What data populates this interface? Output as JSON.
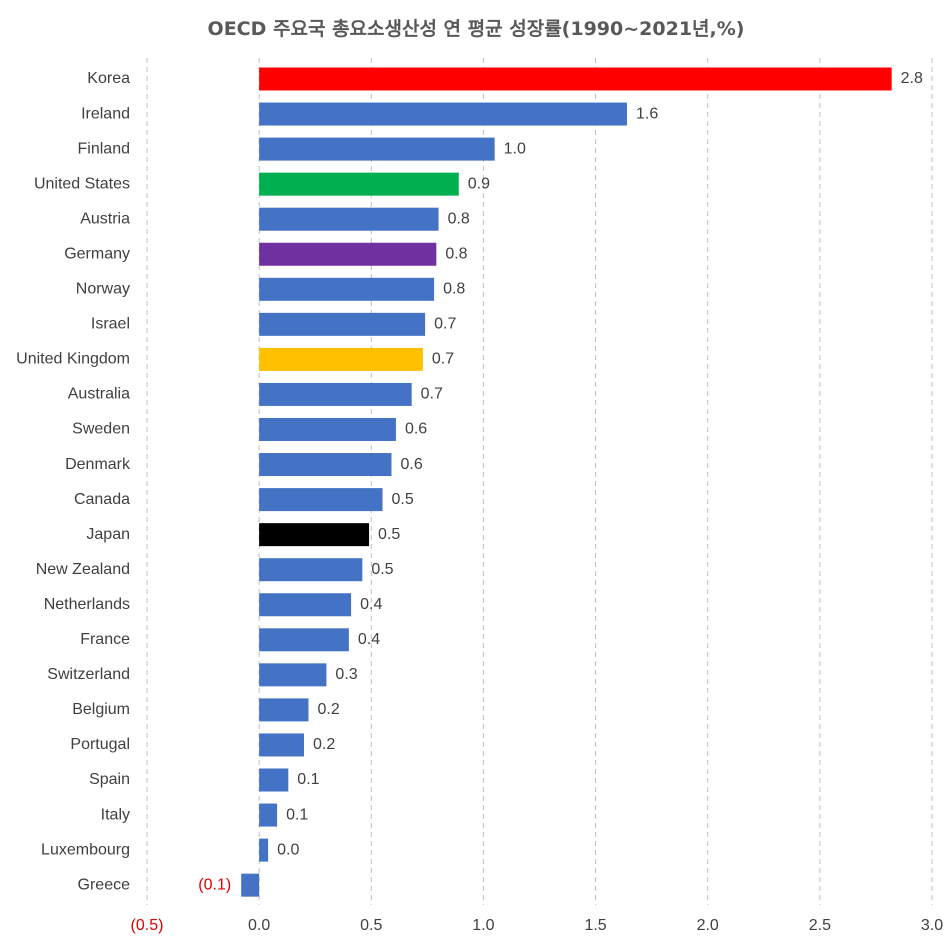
{
  "chart_data": {
    "type": "bar",
    "orientation": "horizontal",
    "title": "OECD 주요국 총요소생산성 연 평균 성장률(1990~2021년,%)",
    "xlim": [
      -0.5,
      3.0
    ],
    "grid": "vertical dashed",
    "categories": [
      "Korea",
      "Ireland",
      "Finland",
      "United States",
      "Austria",
      "Germany",
      "Norway",
      "Israel",
      "United Kingdom",
      "Australia",
      "Sweden",
      "Denmark",
      "Canada",
      "Japan",
      "New Zealand",
      "Netherlands",
      "France",
      "Switzerland",
      "Belgium",
      "Portugal",
      "Spain",
      "Italy",
      "Luxembourg",
      "Greece"
    ],
    "values": [
      2.82,
      1.64,
      1.05,
      0.89,
      0.8,
      0.79,
      0.78,
      0.74,
      0.73,
      0.68,
      0.61,
      0.59,
      0.55,
      0.49,
      0.46,
      0.41,
      0.4,
      0.3,
      0.22,
      0.2,
      0.13,
      0.08,
      0.04,
      -0.08
    ],
    "value_labels": [
      "2.8",
      "1.6",
      "1.0",
      "0.9",
      "0.8",
      "0.8",
      "0.8",
      "0.7",
      "0.7",
      "0.7",
      "0.6",
      "0.6",
      "0.5",
      "0.5",
      "0.5",
      "0.4",
      "0.4",
      "0.3",
      "0.2",
      "0.2",
      "0.1",
      "0.1",
      "0.0",
      "(0.1)"
    ],
    "colors": [
      "#ff0000",
      "#4472c4",
      "#4472c4",
      "#00b050",
      "#4472c4",
      "#7030a0",
      "#4472c4",
      "#4472c4",
      "#ffc000",
      "#4472c4",
      "#4472c4",
      "#4472c4",
      "#4472c4",
      "#000000",
      "#4472c4",
      "#4472c4",
      "#4472c4",
      "#4472c4",
      "#4472c4",
      "#4472c4",
      "#4472c4",
      "#4472c4",
      "#4472c4",
      "#4472c4"
    ],
    "x_ticks": [
      -0.5,
      0.0,
      0.5,
      1.0,
      1.5,
      2.0,
      2.5,
      3.0
    ],
    "x_tick_labels": [
      "(0.5)",
      "0.0",
      "0.5",
      "1.0",
      "1.5",
      "2.0",
      "2.5",
      "3.0"
    ],
    "negative_label_color": "#e00000"
  }
}
